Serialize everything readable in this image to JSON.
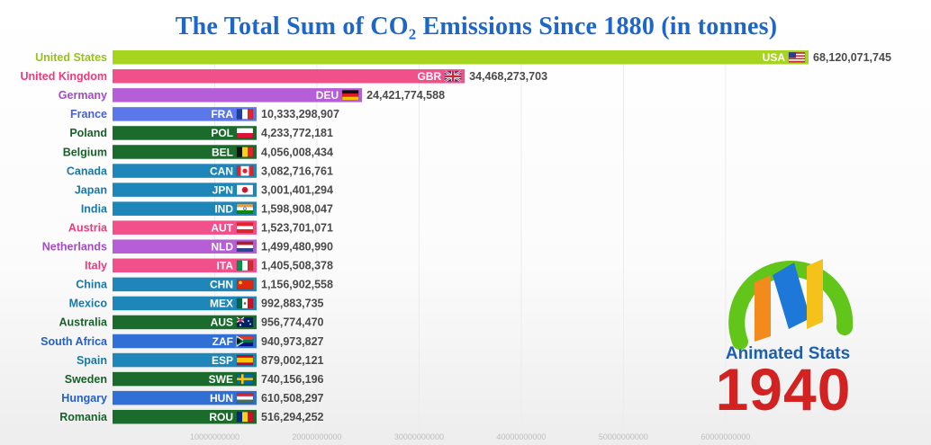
{
  "chart_data": {
    "type": "bar",
    "orientation": "horizontal",
    "title": "The Total Sum of CO₂ Emissions Since 1880 (in tonnes)",
    "xlim": [
      0,
      68120071745
    ],
    "x_ticks": [
      10000000000,
      20000000000,
      30000000000,
      40000000000,
      50000000000,
      60000000000
    ],
    "x_tick_labels": [
      "10000000000",
      "20000000000",
      "30000000000",
      "40000000000",
      "50000000000",
      "60000000000"
    ],
    "bars": [
      {
        "country": "United States",
        "code": "USA",
        "value": 68120071745,
        "value_label": "68,120,071,745",
        "color": "#a7d321",
        "label_color": "#96c21a",
        "flag": "usa-flag"
      },
      {
        "country": "United Kingdom",
        "code": "GBR",
        "value": 34468273703,
        "value_label": "34,468,273,703",
        "color": "#f2508a",
        "label_color": "#e83c7c",
        "flag": "gbr-flag"
      },
      {
        "country": "Germany",
        "code": "DEU",
        "value": 24421774588,
        "value_label": "24,421,774,588",
        "color": "#b65ed8",
        "label_color": "#a24cc6",
        "flag": "deu-flag"
      },
      {
        "country": "France",
        "code": "FRA",
        "value": 10333298907,
        "value_label": "10,333,298,907",
        "color": "#5b77ea",
        "label_color": "#4560d6",
        "flag": "fra-flag"
      },
      {
        "country": "Poland",
        "code": "POL",
        "value": 4233772181,
        "value_label": "4,233,772,181",
        "color": "#1a6b2c",
        "label_color": "#17612a",
        "flag": "pol-flag"
      },
      {
        "country": "Belgium",
        "code": "BEL",
        "value": 4056008434,
        "value_label": "4,056,008,434",
        "color": "#1a6b2c",
        "label_color": "#17612a",
        "flag": "bel-flag"
      },
      {
        "country": "Canada",
        "code": "CAN",
        "value": 3082716761,
        "value_label": "3,082,716,761",
        "color": "#1e86b8",
        "label_color": "#1878a8",
        "flag": "can-flag"
      },
      {
        "country": "Japan",
        "code": "JPN",
        "value": 3001401294,
        "value_label": "3,001,401,294",
        "color": "#1e86b8",
        "label_color": "#1878a8",
        "flag": "jpn-flag"
      },
      {
        "country": "India",
        "code": "IND",
        "value": 1598908047,
        "value_label": "1,598,908,047",
        "color": "#1e86b8",
        "label_color": "#1878a8",
        "flag": "ind-flag"
      },
      {
        "country": "Austria",
        "code": "AUT",
        "value": 1523701071,
        "value_label": "1,523,701,071",
        "color": "#f2508a",
        "label_color": "#e83c7c",
        "flag": "aut-flag"
      },
      {
        "country": "Netherlands",
        "code": "NLD",
        "value": 1499480990,
        "value_label": "1,499,480,990",
        "color": "#b65ed8",
        "label_color": "#a24cc6",
        "flag": "nld-flag"
      },
      {
        "country": "Italy",
        "code": "ITA",
        "value": 1405508378,
        "value_label": "1,405,508,378",
        "color": "#f2508a",
        "label_color": "#e83c7c",
        "flag": "ita-flag"
      },
      {
        "country": "China",
        "code": "CHN",
        "value": 1156902558,
        "value_label": "1,156,902,558",
        "color": "#1e86b8",
        "label_color": "#1878a8",
        "flag": "chn-flag"
      },
      {
        "country": "Mexico",
        "code": "MEX",
        "value": 992883735,
        "value_label": "992,883,735",
        "color": "#1e86b8",
        "label_color": "#1878a8",
        "flag": "mex-flag"
      },
      {
        "country": "Australia",
        "code": "AUS",
        "value": 956774470,
        "value_label": "956,774,470",
        "color": "#1a6b2c",
        "label_color": "#17612a",
        "flag": "aus-flag"
      },
      {
        "country": "South Africa",
        "code": "ZAF",
        "value": 940973827,
        "value_label": "940,973,827",
        "color": "#2f6fd6",
        "label_color": "#2460c4",
        "flag": "zaf-flag"
      },
      {
        "country": "Spain",
        "code": "ESP",
        "value": 879002121,
        "value_label": "879,002,121",
        "color": "#1e86b8",
        "label_color": "#1878a8",
        "flag": "esp-flag"
      },
      {
        "country": "Sweden",
        "code": "SWE",
        "value": 740156196,
        "value_label": "740,156,196",
        "color": "#1a6b2c",
        "label_color": "#17612a",
        "flag": "swe-flag"
      },
      {
        "country": "Hungary",
        "code": "HUN",
        "value": 610508297,
        "value_label": "610,508,297",
        "color": "#2f6fd6",
        "label_color": "#2460c4",
        "flag": "hun-flag"
      },
      {
        "country": "Romania",
        "code": "ROU",
        "value": 516294252,
        "value_label": "516,294,252",
        "color": "#1a6b2c",
        "label_color": "#17612a",
        "flag": "rou-flag"
      }
    ],
    "year": "1940"
  },
  "brand": {
    "name": "Animated Stats",
    "logo_icon": "animated-stats-logo-icon",
    "colors": {
      "ring": "#62c51a",
      "bar1": "#f28a1c",
      "bar2": "#1e78d8",
      "bar3": "#f5c21c"
    }
  }
}
